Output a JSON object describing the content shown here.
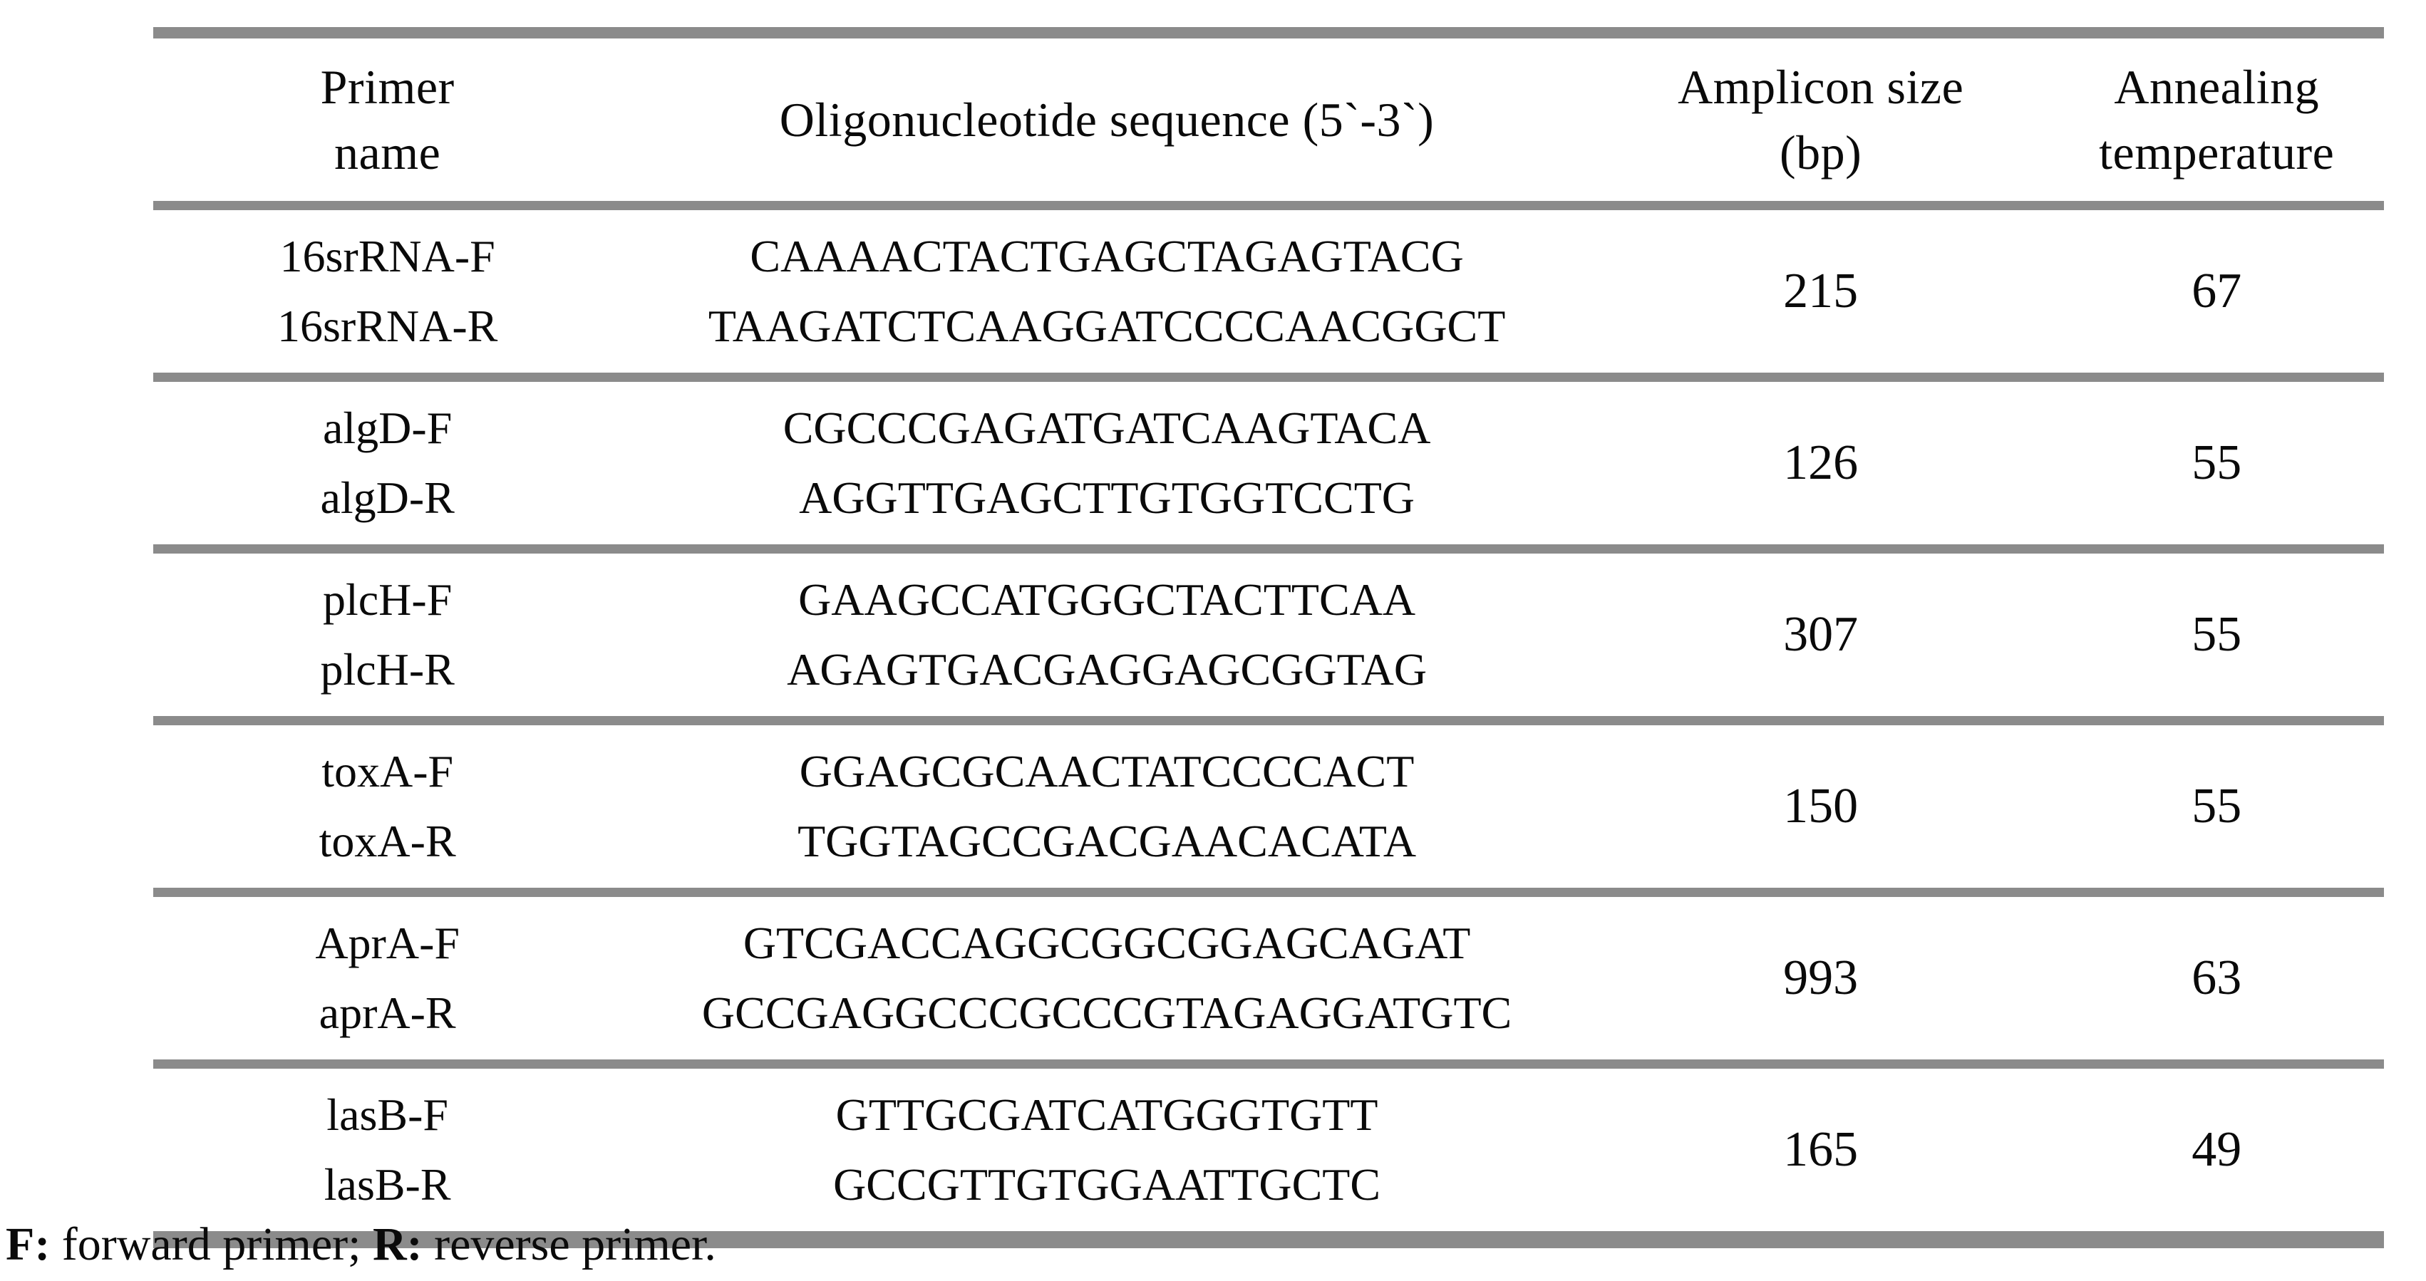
{
  "table": {
    "headers": [
      {
        "line1": "Primer",
        "line2": "name"
      },
      {
        "line1": "Oligonucleotide sequence (5`-3`)",
        "line2": ""
      },
      {
        "line1": "Amplicon size",
        "line2": "(bp)"
      },
      {
        "line1": "Annealing",
        "line2": "temperature"
      }
    ],
    "rows": [
      {
        "primer_f": "16srRNA-F",
        "primer_r": "16srRNA-R",
        "seq_f": "CAAAACTACTGAGCTAGAGTACG",
        "seq_r": "TAAGATCTCAAGGATCCCCAACGGCT",
        "amplicon_bp": "215",
        "annealing_temp": "67"
      },
      {
        "primer_f": "algD-F",
        "primer_r": "algD-R",
        "seq_f": "CGCCCGAGATGATCAAGTACA",
        "seq_r": "AGGTTGAGCTTGTGGTCCTG",
        "amplicon_bp": "126",
        "annealing_temp": "55"
      },
      {
        "primer_f": "plcH-F",
        "primer_r": "plcH-R",
        "seq_f": "GAAGCCATGGGCTACTTCAA",
        "seq_r": "AGAGTGACGAGGAGCGGTAG",
        "amplicon_bp": "307",
        "annealing_temp": "55"
      },
      {
        "primer_f": "toxA-F",
        "primer_r": "toxA-R",
        "seq_f": "GGAGCGCAACTATCCCCACT",
        "seq_r": "TGGTAGCCGACGAACACATA",
        "amplicon_bp": "150",
        "annealing_temp": "55"
      },
      {
        "primer_f": "AprA-F",
        "primer_r": "aprA-R",
        "seq_f": "GTCGACCAGGCGGCGGAGCAGAT",
        "seq_r": "GCCGAGGCCCGCCCGTAGAGGATGTC",
        "amplicon_bp": "993",
        "annealing_temp": "63"
      },
      {
        "primer_f": "lasB-F",
        "primer_r": "lasB-R",
        "seq_f": "GTTGCGATCATGGGTGTT",
        "seq_r": "GCCGTTGTGGAATTGCTC",
        "amplicon_bp": "165",
        "annealing_temp": "49"
      }
    ]
  },
  "footnote": {
    "f_label": "F:",
    "f_text": "forward primer;",
    "r_label": "R:",
    "r_text": "reverse primer."
  },
  "colors": {
    "rule_gray": "#8b8b8b",
    "text": "#0a0a0a"
  }
}
